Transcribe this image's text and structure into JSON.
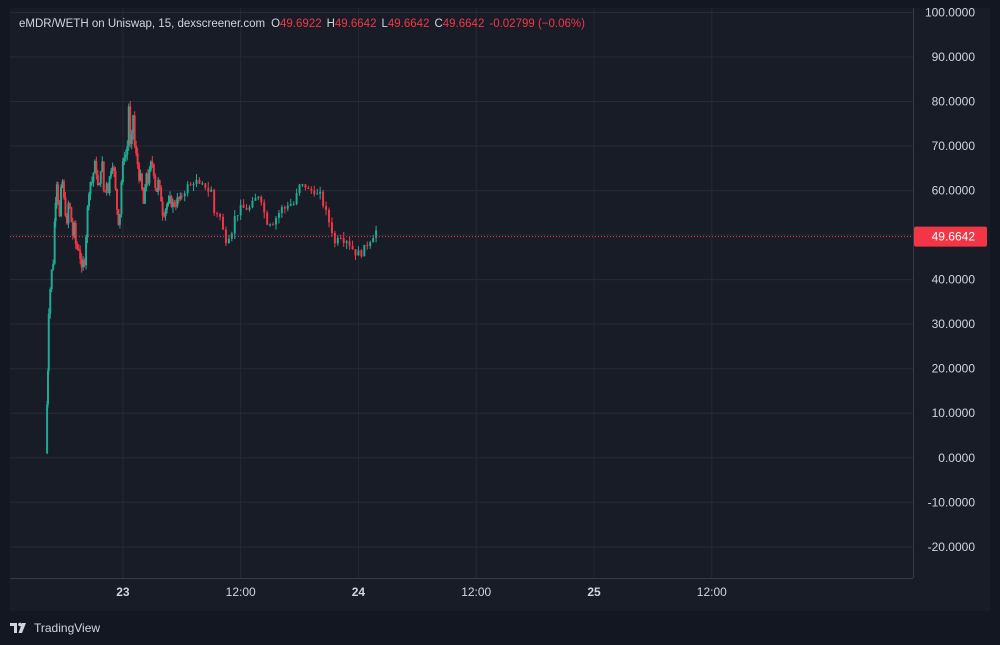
{
  "header": {
    "symbol_text": "eMDR/WETH on Uniswap, 15, dexscreener.com",
    "ohlc": [
      {
        "label": "O",
        "value": "49.6922"
      },
      {
        "label": "H",
        "value": "49.6642"
      },
      {
        "label": "L",
        "value": "49.6642"
      },
      {
        "label": "C",
        "value": "49.6642"
      }
    ],
    "change_text": "-0.02799 (−0.06%)"
  },
  "footer": {
    "brand": "TradingView"
  },
  "colors": {
    "background": "#131722",
    "pane": "#181c27",
    "grid": "#262a35",
    "up": "#22ab94",
    "down": "#f23645",
    "text": "#d1d4dc",
    "price_tag": "#f23645"
  },
  "chart_data": {
    "type": "candlestick",
    "y_range": [
      -27,
      101
    ],
    "y_ticks": [
      "100.0000",
      "90.0000",
      "80.0000",
      "70.0000",
      "60.0000",
      "50.0000",
      "40.0000",
      "30.0000",
      "20.0000",
      "10.0000",
      "0.0000",
      "-10.0000",
      "-20.0000"
    ],
    "x_ticks": [
      {
        "label": "23",
        "t": 6
      },
      {
        "label": "12:00",
        "t": 18
      },
      {
        "label": "24",
        "t": 30
      },
      {
        "label": "12:00",
        "t": 42
      },
      {
        "label": "25",
        "t": 54
      },
      {
        "label": "12:00",
        "t": 66
      }
    ],
    "x_time_range": [
      -5.5,
      86.5
    ],
    "last_price": 49.6642,
    "last_price_label": "49.6642",
    "last_price_hidden_tick": "50.0000",
    "close_path_hours": [
      [
        -1.8,
        1
      ],
      [
        -1.72,
        12
      ],
      [
        -1.63,
        20
      ],
      [
        -1.55,
        33
      ],
      [
        -1.4,
        38
      ],
      [
        -1.25,
        42
      ],
      [
        -1.1,
        44
      ],
      [
        -0.95,
        53
      ],
      [
        -0.85,
        58
      ],
      [
        -0.72,
        62
      ],
      [
        -0.6,
        58
      ],
      [
        -0.45,
        54
      ],
      [
        -0.3,
        60
      ],
      [
        -0.15,
        62
      ],
      [
        0.0,
        58
      ],
      [
        0.15,
        55
      ],
      [
        0.3,
        52
      ],
      [
        0.45,
        57
      ],
      [
        0.6,
        56
      ],
      [
        0.75,
        53
      ],
      [
        0.9,
        50
      ],
      [
        1.05,
        52
      ],
      [
        1.2,
        48
      ],
      [
        1.35,
        47
      ],
      [
        1.5,
        47
      ],
      [
        1.65,
        45
      ],
      [
        1.8,
        42
      ],
      [
        1.95,
        44
      ],
      [
        2.1,
        44
      ],
      [
        2.25,
        50
      ],
      [
        2.4,
        56
      ],
      [
        2.55,
        60
      ],
      [
        2.7,
        62
      ],
      [
        2.85,
        62
      ],
      [
        3.0,
        64
      ],
      [
        3.15,
        66
      ],
      [
        3.3,
        64
      ],
      [
        3.45,
        61
      ],
      [
        3.6,
        61
      ],
      [
        3.75,
        65
      ],
      [
        3.9,
        66
      ],
      [
        4.05,
        60
      ],
      [
        4.2,
        60
      ],
      [
        4.35,
        62
      ],
      [
        4.5,
        60
      ],
      [
        4.65,
        63
      ],
      [
        4.8,
        65
      ],
      [
        4.95,
        66
      ],
      [
        5.1,
        64
      ],
      [
        5.25,
        60
      ],
      [
        5.4,
        56
      ],
      [
        5.55,
        53
      ],
      [
        5.7,
        55
      ],
      [
        5.85,
        62
      ],
      [
        6.0,
        66
      ],
      [
        6.15,
        68
      ],
      [
        6.3,
        68
      ],
      [
        6.45,
        70
      ],
      [
        6.6,
        79
      ],
      [
        6.75,
        70
      ],
      [
        6.9,
        72
      ],
      [
        7.05,
        77
      ],
      [
        7.2,
        70
      ],
      [
        7.35,
        68
      ],
      [
        7.5,
        66
      ],
      [
        7.65,
        63
      ],
      [
        7.8,
        63
      ],
      [
        7.95,
        60
      ],
      [
        8.1,
        57
      ],
      [
        8.25,
        60
      ],
      [
        8.4,
        64
      ],
      [
        8.55,
        62
      ],
      [
        8.7,
        64
      ],
      [
        8.85,
        66
      ],
      [
        9.0,
        66
      ],
      [
        9.15,
        64
      ],
      [
        9.3,
        61
      ],
      [
        9.45,
        60
      ],
      [
        9.6,
        62
      ],
      [
        9.75,
        60
      ],
      [
        9.9,
        58
      ],
      [
        10.05,
        55
      ],
      [
        10.2,
        55
      ],
      [
        10.35,
        56
      ],
      [
        10.5,
        57
      ],
      [
        10.65,
        57
      ],
      [
        10.8,
        58
      ],
      [
        10.95,
        57
      ],
      [
        11.1,
        57
      ],
      [
        11.25,
        57
      ],
      [
        11.4,
        57
      ],
      [
        11.55,
        58
      ],
      [
        11.7,
        58
      ],
      [
        11.85,
        58
      ],
      [
        12.0,
        59
      ],
      [
        12.3,
        60
      ],
      [
        12.6,
        61
      ],
      [
        12.9,
        61
      ],
      [
        13.2,
        62
      ],
      [
        13.5,
        62
      ],
      [
        13.8,
        61
      ],
      [
        14.1,
        61
      ],
      [
        14.4,
        61
      ],
      [
        14.7,
        60
      ],
      [
        15.0,
        60
      ],
      [
        15.3,
        55
      ],
      [
        15.6,
        55
      ],
      [
        15.9,
        54
      ],
      [
        16.2,
        51
      ],
      [
        16.5,
        49
      ],
      [
        16.8,
        50
      ],
      [
        17.1,
        51
      ],
      [
        17.4,
        54
      ],
      [
        17.7,
        55
      ],
      [
        18.0,
        56
      ],
      [
        18.3,
        56
      ],
      [
        18.6,
        56
      ],
      [
        18.9,
        56
      ],
      [
        19.2,
        57
      ],
      [
        19.5,
        58
      ],
      [
        19.8,
        59
      ],
      [
        20.1,
        58
      ],
      [
        20.4,
        55
      ],
      [
        20.7,
        53
      ],
      [
        21.0,
        53
      ],
      [
        21.3,
        53
      ],
      [
        21.6,
        54
      ],
      [
        21.9,
        55
      ],
      [
        22.2,
        56
      ],
      [
        22.5,
        56
      ],
      [
        22.8,
        57
      ],
      [
        23.1,
        57
      ],
      [
        23.4,
        57
      ],
      [
        23.7,
        59
      ],
      [
        24.0,
        61
      ],
      [
        24.3,
        61
      ],
      [
        24.6,
        61
      ],
      [
        24.9,
        60
      ],
      [
        25.2,
        60
      ],
      [
        25.5,
        60
      ],
      [
        25.8,
        59
      ],
      [
        26.1,
        59
      ],
      [
        26.4,
        57
      ],
      [
        26.7,
        55
      ],
      [
        27.0,
        53
      ],
      [
        27.3,
        51
      ],
      [
        27.6,
        48
      ],
      [
        27.9,
        50
      ],
      [
        28.2,
        50
      ],
      [
        28.5,
        49
      ],
      [
        28.8,
        49
      ],
      [
        29.1,
        48
      ],
      [
        29.4,
        47
      ],
      [
        29.7,
        46
      ],
      [
        30.0,
        46
      ],
      [
        30.3,
        46
      ],
      [
        30.6,
        47
      ],
      [
        30.9,
        48
      ],
      [
        31.2,
        49
      ],
      [
        31.5,
        50
      ],
      [
        31.8,
        51
      ]
    ],
    "candle_dt_hours": 0.25
  }
}
